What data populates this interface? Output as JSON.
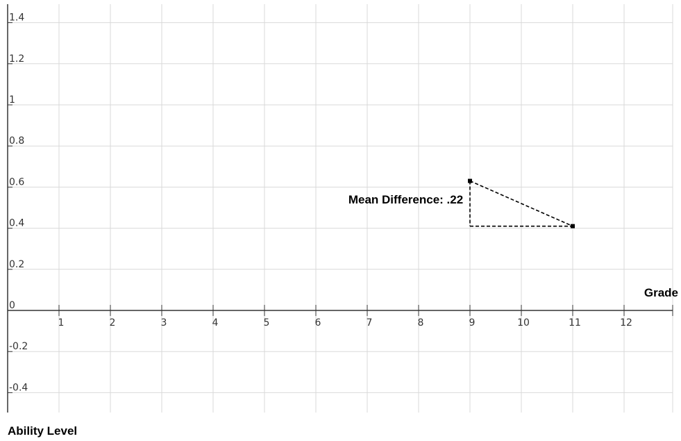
{
  "chart_data": {
    "type": "line",
    "title": "",
    "xlabel": "Grade",
    "ylabel": "Ability Level",
    "x_ticks": [
      1,
      2,
      3,
      4,
      5,
      6,
      7,
      8,
      9,
      10,
      11,
      12
    ],
    "y_ticks": [
      -0.4,
      -0.2,
      0,
      0.2,
      0.4,
      0.6,
      0.8,
      1,
      1.2,
      1.4
    ],
    "y_tick_labels": [
      "-0.4",
      "-0.2",
      "0",
      "0.2",
      "0.4",
      "0.6",
      "0.8",
      "1",
      "1.2",
      "1.4"
    ],
    "xlim": [
      0,
      12.5
    ],
    "ylim": [
      -0.5,
      1.48
    ],
    "grid": true,
    "series": [
      {
        "x": [
          9,
          11
        ],
        "y": [
          0.63,
          0.41
        ]
      }
    ],
    "guides": [
      {
        "from": [
          9,
          0.63
        ],
        "to": [
          9,
          0.41
        ]
      },
      {
        "from": [
          9,
          0.41
        ],
        "to": [
          11,
          0.41
        ]
      }
    ],
    "annotations": [
      {
        "text": "Mean Difference: .22",
        "x": 7.75,
        "y": 0.52
      }
    ]
  }
}
